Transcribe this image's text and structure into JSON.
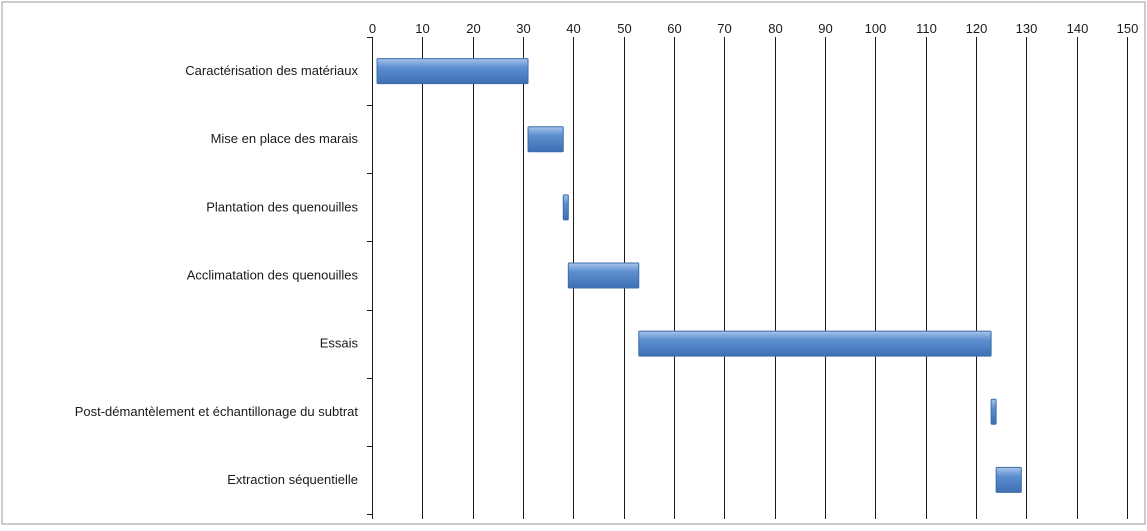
{
  "chart_data": {
    "type": "bar",
    "orientation": "horizontal",
    "chart_style": "gantt",
    "title": "",
    "xlabel": "",
    "ylabel": "",
    "xlim": [
      0,
      150
    ],
    "x_ticks": [
      0,
      10,
      20,
      30,
      40,
      50,
      60,
      70,
      80,
      90,
      100,
      110,
      120,
      130,
      140,
      150
    ],
    "x_axis_position": "top",
    "grid": "vertical",
    "legend": "none",
    "bar_color": "#4f81bd",
    "tasks": [
      {
        "label": "Caractérisation des matériaux",
        "start": 1,
        "end": 31
      },
      {
        "label": "Mise en place des marais",
        "start": 31,
        "end": 38
      },
      {
        "label": "Plantation des quenouilles",
        "start": 38,
        "end": 39
      },
      {
        "label": "Acclimatation des quenouilles",
        "start": 39,
        "end": 53
      },
      {
        "label": "Essais",
        "start": 53,
        "end": 123
      },
      {
        "label": "Post-démantèlement et échantillonage du subtrat",
        "start": 123,
        "end": 124
      },
      {
        "label": "Extraction séquentielle",
        "start": 124,
        "end": 129
      }
    ]
  }
}
